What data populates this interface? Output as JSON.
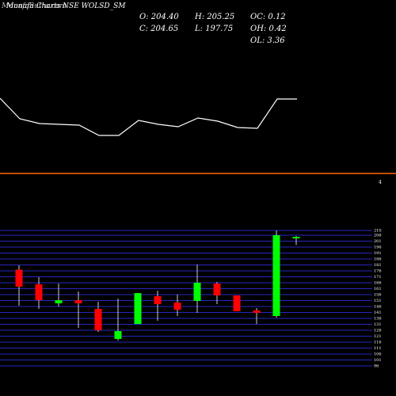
{
  "header": {
    "site": "MunafaSutra.com",
    "title": "Munafa Charts NSE WOLSD_SM",
    "stats": [
      {
        "label": "O: 204.40"
      },
      {
        "label": "H: 205.25"
      },
      {
        "label": "OC: 0.12"
      },
      {
        "label": "C: 204.65"
      },
      {
        "label": "L: 197.75"
      },
      {
        "label": "OH: 0.42"
      },
      {
        "label": "OL: 3.36"
      }
    ]
  },
  "marker": "4",
  "chart_data": [
    {
      "type": "line",
      "color": "#ffffff",
      "ylim": [
        0,
        250
      ],
      "x": [
        0,
        25,
        50,
        75,
        100,
        125,
        150,
        175,
        200,
        225,
        250,
        275,
        300,
        325,
        350,
        375
      ],
      "values": [
        126,
        100,
        94,
        93,
        92,
        79,
        79,
        98,
        93,
        90,
        101,
        97,
        89,
        88,
        125,
        125
      ]
    },
    {
      "type": "candlestick",
      "up_color": "#00ff00",
      "down_color": "#ff0000",
      "grid_color": "#3333ff",
      "ylim": [
        96,
        210
      ],
      "yticks": [
        210,
        206,
        201,
        196,
        191,
        186,
        181,
        176,
        171,
        166,
        161,
        156,
        151,
        146,
        141,
        136,
        131,
        126,
        121,
        116,
        111,
        106,
        101,
        96
      ],
      "open": [
        177,
        164.7,
        148.7,
        151.3,
        144,
        118.7,
        131.3,
        154.7,
        149.3,
        150.7,
        165.3,
        155.3,
        142.7,
        138,
        204.4
      ],
      "high": [
        180.7,
        170.7,
        165.3,
        158.7,
        150,
        152.7,
        157.3,
        159.3,
        156,
        181.3,
        166.7,
        155.3,
        144.7,
        210,
        205.25
      ],
      "low": [
        146.7,
        144,
        146,
        128,
        124.7,
        117.3,
        131.3,
        134,
        138,
        140.7,
        148,
        142,
        131.3,
        136.7,
        197.75
      ],
      "close": [
        162.7,
        151.3,
        151.3,
        148.7,
        126,
        125.3,
        157.3,
        148,
        143.3,
        166,
        155.3,
        142,
        140.7,
        206,
        204.65
      ]
    }
  ]
}
